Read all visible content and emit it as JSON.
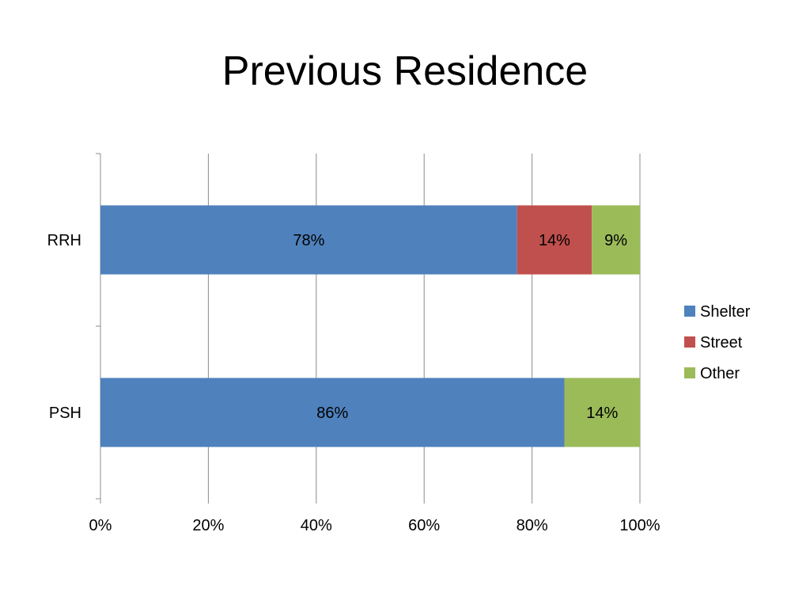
{
  "slide": {
    "title": "Previous Residence"
  },
  "chart_data": {
    "type": "bar",
    "orientation": "horizontal",
    "stacking": "percent",
    "title": "Previous Residence",
    "xlabel": "",
    "ylabel": "",
    "xlim": [
      0,
      100
    ],
    "x_ticks": [
      "0%",
      "20%",
      "40%",
      "60%",
      "80%",
      "100%"
    ],
    "categories": [
      "RRH",
      "PSH"
    ],
    "series": [
      {
        "name": "Shelter",
        "color": "#4f81bd",
        "values": [
          78,
          86
        ],
        "labels": [
          "78%",
          "86%"
        ]
      },
      {
        "name": "Street",
        "color": "#c0504d",
        "values": [
          14,
          0
        ],
        "labels": [
          "14%",
          ""
        ]
      },
      {
        "name": "Other",
        "color": "#9bbb59",
        "values": [
          9,
          14
        ],
        "labels": [
          "9%",
          "14%"
        ]
      }
    ],
    "grid": true,
    "legend": "right"
  }
}
